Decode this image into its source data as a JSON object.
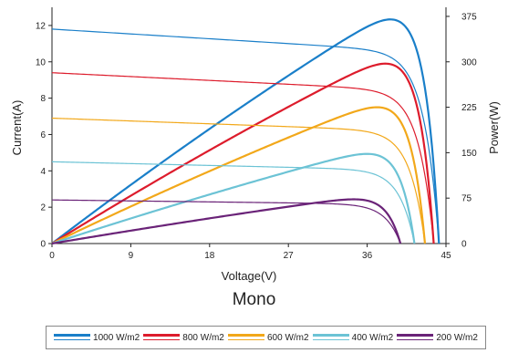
{
  "chart_data": {
    "type": "line",
    "title": "Mono",
    "xlabel": "Voltage(V)",
    "ylabel_left": "Current(A)",
    "ylabel_right": "Power(W)",
    "xlim": [
      0,
      45
    ],
    "ylim_left": [
      0,
      13
    ],
    "ylim_right": [
      0,
      390
    ],
    "x_ticks": [
      0,
      9,
      18,
      27,
      36,
      45
    ],
    "y_ticks_left": [
      0,
      2,
      4,
      6,
      8,
      10,
      12
    ],
    "y_ticks_right": [
      0,
      75,
      150,
      225,
      300,
      375
    ],
    "grid": false,
    "legend_placement": "bottom",
    "series": [
      {
        "name": "1000 W/m2",
        "color": "#1a7fc9",
        "isc": 11.8,
        "voc": 44.2,
        "vmp": 35.8,
        "pmax": 370
      },
      {
        "name": "800 W/m2",
        "color": "#dd1c2c",
        "isc": 9.4,
        "voc": 43.6,
        "vmp": 35.2,
        "pmax": 297
      },
      {
        "name": "600 W/m2",
        "color": "#f2a81a",
        "isc": 6.9,
        "voc": 42.6,
        "vmp": 34.9,
        "pmax": 225
      },
      {
        "name": "400 W/m2",
        "color": "#6cc3d5",
        "isc": 4.5,
        "voc": 41.4,
        "vmp": 35.2,
        "pmax": 148
      },
      {
        "name": "200 W/m2",
        "color": "#6a2378",
        "isc": 2.4,
        "voc": 39.8,
        "vmp": 35.0,
        "pmax": 73
      }
    ]
  }
}
